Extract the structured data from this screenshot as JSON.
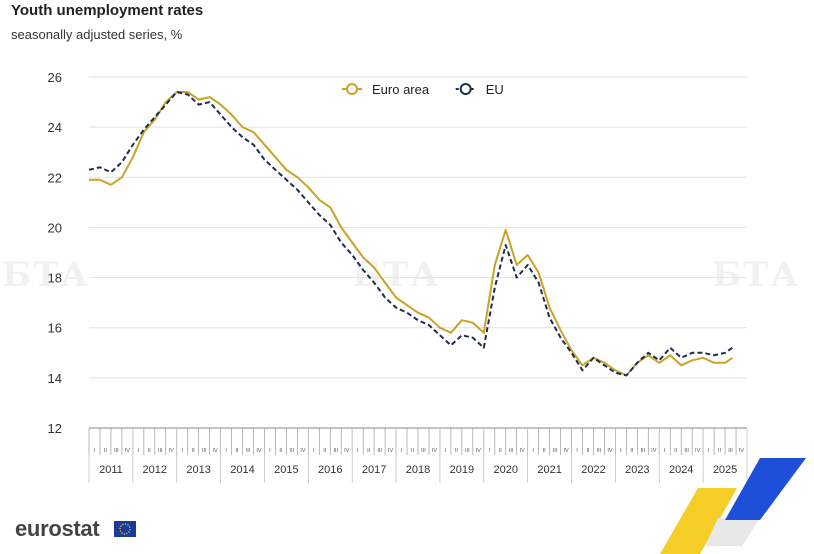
{
  "header": {
    "title": "Youth unemployment rates",
    "subtitle": "seasonally adjusted series, %"
  },
  "branding": {
    "logo_text": "eurostat",
    "watermark_text": "БТА"
  },
  "chart_data": {
    "type": "line",
    "title": "Youth unemployment rates",
    "subtitle": "seasonally adjusted series, %",
    "xlabel": "",
    "ylabel": "",
    "ylim": [
      12,
      26
    ],
    "yticks": [
      12,
      14,
      16,
      18,
      20,
      22,
      24,
      26
    ],
    "grid": true,
    "legend_position": "top-center",
    "quarter_labels": [
      "I",
      "II",
      "III",
      "IV"
    ],
    "years": [
      "2011",
      "2012",
      "2013",
      "2014",
      "2015",
      "2016",
      "2017",
      "2018",
      "2019",
      "2020",
      "2021",
      "2022",
      "2023",
      "2024",
      "2025"
    ],
    "x_start": "2011-01",
    "x_end": "2025-12",
    "colors": {
      "euro_area": "#c9a227",
      "eu": "#1f2d52",
      "grid": "#e2e2e2"
    },
    "series": [
      {
        "name": "Euro area",
        "style": "solid",
        "points": [
          [
            "2011-01",
            21.9
          ],
          [
            "2011-04",
            21.9
          ],
          [
            "2011-07",
            21.7
          ],
          [
            "2011-10",
            22.0
          ],
          [
            "2012-01",
            22.8
          ],
          [
            "2012-04",
            23.8
          ],
          [
            "2012-07",
            24.3
          ],
          [
            "2012-10",
            25.0
          ],
          [
            "2013-01",
            25.4
          ],
          [
            "2013-04",
            25.4
          ],
          [
            "2013-07",
            25.1
          ],
          [
            "2013-10",
            25.2
          ],
          [
            "2014-01",
            24.9
          ],
          [
            "2014-04",
            24.5
          ],
          [
            "2014-07",
            24.0
          ],
          [
            "2014-10",
            23.8
          ],
          [
            "2015-01",
            23.3
          ],
          [
            "2015-04",
            22.8
          ],
          [
            "2015-07",
            22.3
          ],
          [
            "2015-10",
            22.0
          ],
          [
            "2016-01",
            21.6
          ],
          [
            "2016-04",
            21.1
          ],
          [
            "2016-07",
            20.8
          ],
          [
            "2016-10",
            20.0
          ],
          [
            "2017-01",
            19.4
          ],
          [
            "2017-04",
            18.8
          ],
          [
            "2017-07",
            18.4
          ],
          [
            "2017-10",
            17.8
          ],
          [
            "2018-01",
            17.2
          ],
          [
            "2018-04",
            16.9
          ],
          [
            "2018-07",
            16.6
          ],
          [
            "2018-10",
            16.4
          ],
          [
            "2019-01",
            16.0
          ],
          [
            "2019-04",
            15.8
          ],
          [
            "2019-07",
            16.3
          ],
          [
            "2019-10",
            16.2
          ],
          [
            "2020-01",
            15.8
          ],
          [
            "2020-04",
            18.5
          ],
          [
            "2020-07",
            19.9
          ],
          [
            "2020-10",
            18.5
          ],
          [
            "2021-01",
            18.9
          ],
          [
            "2021-04",
            18.2
          ],
          [
            "2021-07",
            16.8
          ],
          [
            "2021-10",
            15.9
          ],
          [
            "2022-01",
            15.1
          ],
          [
            "2022-04",
            14.5
          ],
          [
            "2022-07",
            14.8
          ],
          [
            "2022-10",
            14.6
          ],
          [
            "2023-01",
            14.3
          ],
          [
            "2023-04",
            14.1
          ],
          [
            "2023-07",
            14.6
          ],
          [
            "2023-10",
            14.9
          ],
          [
            "2024-01",
            14.6
          ],
          [
            "2024-04",
            14.9
          ],
          [
            "2024-07",
            14.5
          ],
          [
            "2024-10",
            14.7
          ],
          [
            "2025-01",
            14.8
          ],
          [
            "2025-04",
            14.6
          ],
          [
            "2025-07",
            14.6
          ],
          [
            "2025-09",
            14.8
          ]
        ]
      },
      {
        "name": "EU",
        "style": "dashed",
        "points": [
          [
            "2011-01",
            22.3
          ],
          [
            "2011-04",
            22.4
          ],
          [
            "2011-07",
            22.2
          ],
          [
            "2011-10",
            22.6
          ],
          [
            "2012-01",
            23.3
          ],
          [
            "2012-04",
            23.9
          ],
          [
            "2012-07",
            24.4
          ],
          [
            "2012-10",
            24.9
          ],
          [
            "2013-01",
            25.4
          ],
          [
            "2013-04",
            25.3
          ],
          [
            "2013-07",
            24.9
          ],
          [
            "2013-10",
            25.0
          ],
          [
            "2014-01",
            24.5
          ],
          [
            "2014-04",
            24.0
          ],
          [
            "2014-07",
            23.6
          ],
          [
            "2014-10",
            23.3
          ],
          [
            "2015-01",
            22.7
          ],
          [
            "2015-04",
            22.3
          ],
          [
            "2015-07",
            21.9
          ],
          [
            "2015-10",
            21.5
          ],
          [
            "2016-01",
            21.0
          ],
          [
            "2016-04",
            20.5
          ],
          [
            "2016-07",
            20.1
          ],
          [
            "2016-10",
            19.4
          ],
          [
            "2017-01",
            18.9
          ],
          [
            "2017-04",
            18.3
          ],
          [
            "2017-07",
            17.8
          ],
          [
            "2017-10",
            17.2
          ],
          [
            "2018-01",
            16.8
          ],
          [
            "2018-04",
            16.6
          ],
          [
            "2018-07",
            16.3
          ],
          [
            "2018-10",
            16.1
          ],
          [
            "2019-01",
            15.7
          ],
          [
            "2019-04",
            15.3
          ],
          [
            "2019-07",
            15.7
          ],
          [
            "2019-10",
            15.6
          ],
          [
            "2020-01",
            15.2
          ],
          [
            "2020-04",
            17.6
          ],
          [
            "2020-07",
            19.3
          ],
          [
            "2020-10",
            18.0
          ],
          [
            "2021-01",
            18.5
          ],
          [
            "2021-04",
            17.8
          ],
          [
            "2021-07",
            16.4
          ],
          [
            "2021-10",
            15.6
          ],
          [
            "2022-01",
            15.0
          ],
          [
            "2022-04",
            14.3
          ],
          [
            "2022-07",
            14.8
          ],
          [
            "2022-10",
            14.5
          ],
          [
            "2023-01",
            14.2
          ],
          [
            "2023-04",
            14.1
          ],
          [
            "2023-07",
            14.6
          ],
          [
            "2023-10",
            15.0
          ],
          [
            "2024-01",
            14.7
          ],
          [
            "2024-04",
            15.2
          ],
          [
            "2024-07",
            14.8
          ],
          [
            "2024-10",
            15.0
          ],
          [
            "2025-01",
            15.0
          ],
          [
            "2025-04",
            14.9
          ],
          [
            "2025-07",
            15.0
          ],
          [
            "2025-09",
            15.2
          ]
        ]
      }
    ]
  }
}
